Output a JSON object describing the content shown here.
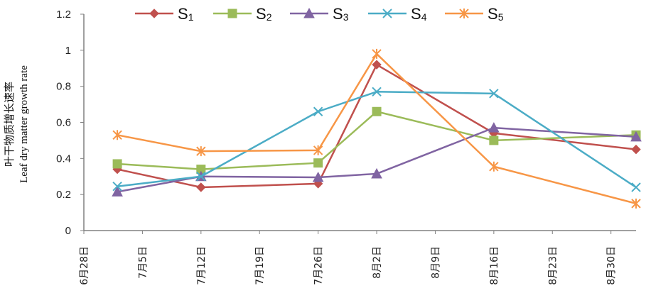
{
  "chart_data": {
    "type": "line",
    "title": "",
    "xlabel": "",
    "ylabel_lines": [
      "叶干物质增长速率",
      "Leaf dry matter growth rate"
    ],
    "ylim": [
      0,
      1.2
    ],
    "y_ticks": [
      "0",
      "0.2",
      "0.4",
      "0.6",
      "0.8",
      "1",
      "1.2"
    ],
    "x_ticks": [
      "6月28日",
      "7月5日",
      "7月12日",
      "7月19日",
      "7月26日",
      "8月2日",
      "8月9日",
      "8月16日",
      "8月23日",
      "8月30日"
    ],
    "x_tick_days": [
      0,
      7,
      14,
      21,
      28,
      35,
      42,
      49,
      56,
      63
    ],
    "x_range_days": [
      0,
      66
    ],
    "x_days": [
      4,
      14,
      28,
      35,
      49,
      66
    ],
    "grid": false,
    "legend_position": "top",
    "series": [
      {
        "name": "S",
        "sub": "1",
        "color": "#C0504D",
        "marker": "diamond",
        "values": [
          0.34,
          0.24,
          0.26,
          0.92,
          0.54,
          0.45
        ]
      },
      {
        "name": "S",
        "sub": "2",
        "color": "#9BBB59",
        "marker": "square",
        "values": [
          0.37,
          0.34,
          0.375,
          0.66,
          0.5,
          0.53
        ]
      },
      {
        "name": "S",
        "sub": "3",
        "color": "#8064A2",
        "marker": "triangle",
        "values": [
          0.215,
          0.3,
          0.295,
          0.315,
          0.57,
          0.52
        ]
      },
      {
        "name": "S",
        "sub": "4",
        "color": "#4BACC6",
        "marker": "x",
        "values": [
          0.245,
          0.3,
          0.66,
          0.77,
          0.76,
          0.24
        ]
      },
      {
        "name": "S",
        "sub": "5",
        "color": "#F79646",
        "marker": "star",
        "values": [
          0.53,
          0.44,
          0.445,
          0.98,
          0.355,
          0.15
        ]
      }
    ]
  }
}
